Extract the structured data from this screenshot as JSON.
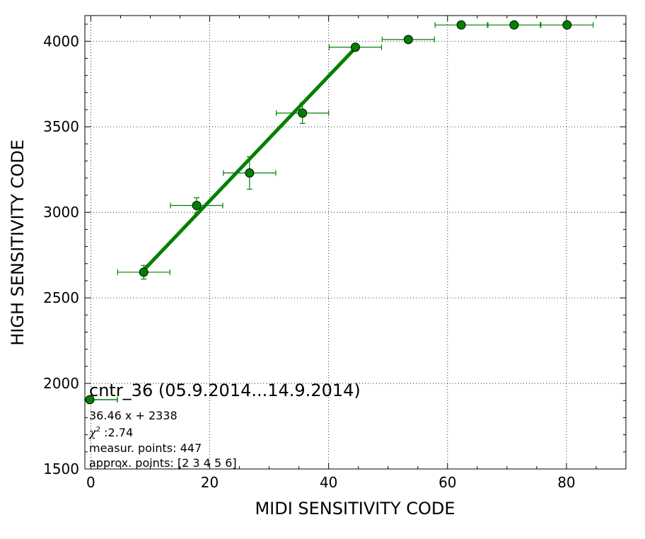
{
  "chart_data": {
    "type": "scatter",
    "xlabel": "MIDI SENSITIVITY CODE",
    "ylabel": "HIGH SENSITIVITY CODE",
    "xlim": [
      -1,
      90
    ],
    "ylim": [
      1500,
      4150
    ],
    "x_ticks": [
      "0",
      "20",
      "40",
      "60",
      "80"
    ],
    "y_ticks": [
      "1500",
      "2000",
      "2500",
      "3000",
      "3500",
      "4000"
    ],
    "grid": true,
    "colors": {
      "series": "#008000",
      "marker_edge": "#000000"
    },
    "points": [
      {
        "x": 8.9,
        "y": 2650,
        "xerr": 4.4,
        "yerr": 40
      },
      {
        "x": 17.8,
        "y": 3040,
        "xerr": 4.4,
        "yerr": 45
      },
      {
        "x": 26.7,
        "y": 3230,
        "xerr": 4.4,
        "yerr": 95
      },
      {
        "x": 35.6,
        "y": 3580,
        "xerr": 4.4,
        "yerr": 60
      },
      {
        "x": 44.5,
        "y": 3965,
        "xerr": 4.4,
        "yerr": 5
      },
      {
        "x": 53.4,
        "y": 4010,
        "xerr": 4.4,
        "yerr": 3
      },
      {
        "x": 62.3,
        "y": 4095,
        "xerr": 4.4,
        "yerr": 0
      },
      {
        "x": 71.2,
        "y": 4095,
        "xerr": 4.4,
        "yerr": 0
      },
      {
        "x": 80.1,
        "y": 4095,
        "xerr": 4.4,
        "yerr": 0
      }
    ],
    "fit": {
      "slope": 36.46,
      "intercept": 2338,
      "x_range": [
        8.9,
        44.5
      ]
    },
    "legend": {
      "placement": "bottom-left",
      "title": "cntr_36 (05.9.2014...14.9.2014)",
      "fit_text": "36.46 x + 2338",
      "chi_symbol": "χ",
      "chi_value": " :2.74",
      "measur_text": "measur. points: 447",
      "approx_text": "approx. points: [2 3 4 5 6]"
    }
  }
}
